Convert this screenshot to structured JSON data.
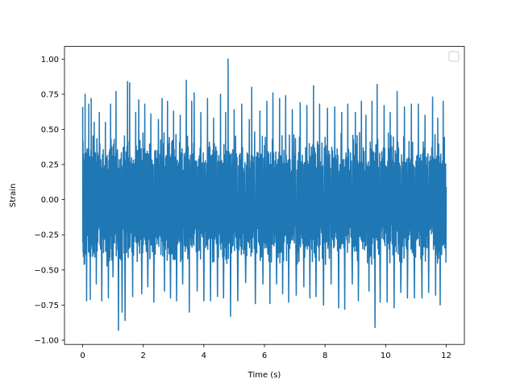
{
  "chart_data": {
    "type": "line",
    "title": "",
    "xlabel": "Time (s)",
    "ylabel": "Strain",
    "xlim": [
      -0.6,
      12.6
    ],
    "ylim": [
      -1.03,
      1.09
    ],
    "x_ticks": [
      {
        "value": 0,
        "label": "0"
      },
      {
        "value": 2,
        "label": "2"
      },
      {
        "value": 4,
        "label": "4"
      },
      {
        "value": 6,
        "label": "6"
      },
      {
        "value": 8,
        "label": "8"
      },
      {
        "value": 10,
        "label": "10"
      },
      {
        "value": 12,
        "label": "12"
      }
    ],
    "y_ticks": [
      {
        "value": -1.0,
        "label": "−1.00"
      },
      {
        "value": -0.75,
        "label": "−0.75"
      },
      {
        "value": -0.5,
        "label": "−0.50"
      },
      {
        "value": -0.25,
        "label": "−0.25"
      },
      {
        "value": 0.0,
        "label": "0.00"
      },
      {
        "value": 0.25,
        "label": "0.25"
      },
      {
        "value": 0.5,
        "label": "0.50"
      },
      {
        "value": 0.75,
        "label": "0.75"
      },
      {
        "value": 1.0,
        "label": "1.00"
      }
    ],
    "grid": false,
    "legend": {
      "placement": "top-right",
      "entries": []
    },
    "series": [
      {
        "color": "#1f77b4",
        "x_range": [
          0,
          12
        ],
        "typical_envelope": [
          -0.5,
          0.5
        ],
        "peaks": [
          {
            "x": 0.0,
            "y": 0.66
          },
          {
            "x": 0.05,
            "y": -0.46
          },
          {
            "x": 0.08,
            "y": 0.75
          },
          {
            "x": 0.13,
            "y": -0.72
          },
          {
            "x": 0.2,
            "y": 0.68
          },
          {
            "x": 0.25,
            "y": -0.71
          },
          {
            "x": 0.28,
            "y": 0.72
          },
          {
            "x": 0.38,
            "y": 0.55
          },
          {
            "x": 0.45,
            "y": -0.6
          },
          {
            "x": 0.55,
            "y": 0.62
          },
          {
            "x": 0.63,
            "y": -0.72
          },
          {
            "x": 0.75,
            "y": 0.55
          },
          {
            "x": 0.85,
            "y": -0.7
          },
          {
            "x": 0.92,
            "y": 0.68
          },
          {
            "x": 1.0,
            "y": -0.55
          },
          {
            "x": 1.1,
            "y": 0.77
          },
          {
            "x": 1.18,
            "y": -0.93
          },
          {
            "x": 1.3,
            "y": -0.8
          },
          {
            "x": 1.4,
            "y": -0.86
          },
          {
            "x": 1.48,
            "y": 0.84
          },
          {
            "x": 1.55,
            "y": 0.83
          },
          {
            "x": 1.65,
            "y": -0.69
          },
          {
            "x": 1.75,
            "y": 0.62
          },
          {
            "x": 1.85,
            "y": 0.71
          },
          {
            "x": 1.95,
            "y": -0.67
          },
          {
            "x": 2.05,
            "y": 0.68
          },
          {
            "x": 2.15,
            "y": -0.62
          },
          {
            "x": 2.25,
            "y": 0.61
          },
          {
            "x": 2.35,
            "y": -0.73
          },
          {
            "x": 2.5,
            "y": 0.57
          },
          {
            "x": 2.62,
            "y": 0.72
          },
          {
            "x": 2.7,
            "y": -0.65
          },
          {
            "x": 2.8,
            "y": 0.7
          },
          {
            "x": 2.9,
            "y": -0.7
          },
          {
            "x": 3.0,
            "y": 0.63
          },
          {
            "x": 3.1,
            "y": -0.72
          },
          {
            "x": 3.22,
            "y": 0.6
          },
          {
            "x": 3.3,
            "y": -0.6
          },
          {
            "x": 3.42,
            "y": 0.85
          },
          {
            "x": 3.52,
            "y": -0.8
          },
          {
            "x": 3.6,
            "y": 0.7
          },
          {
            "x": 3.68,
            "y": 0.76
          },
          {
            "x": 3.78,
            "y": -0.65
          },
          {
            "x": 3.9,
            "y": 0.62
          },
          {
            "x": 4.0,
            "y": -0.72
          },
          {
            "x": 4.12,
            "y": 0.72
          },
          {
            "x": 4.22,
            "y": -0.72
          },
          {
            "x": 4.32,
            "y": 0.58
          },
          {
            "x": 4.45,
            "y": -0.69
          },
          {
            "x": 4.55,
            "y": 0.75
          },
          {
            "x": 4.65,
            "y": -0.7
          },
          {
            "x": 4.72,
            "y": 0.62
          },
          {
            "x": 4.8,
            "y": 1.0
          },
          {
            "x": 4.88,
            "y": -0.83
          },
          {
            "x": 5.0,
            "y": 0.64
          },
          {
            "x": 5.12,
            "y": -0.72
          },
          {
            "x": 5.25,
            "y": 0.68
          },
          {
            "x": 5.38,
            "y": -0.59
          },
          {
            "x": 5.5,
            "y": 0.57
          },
          {
            "x": 5.58,
            "y": 0.8
          },
          {
            "x": 5.7,
            "y": -0.74
          },
          {
            "x": 5.85,
            "y": 0.63
          },
          {
            "x": 5.95,
            "y": -0.6
          },
          {
            "x": 6.08,
            "y": 0.7
          },
          {
            "x": 6.18,
            "y": -0.74
          },
          {
            "x": 6.28,
            "y": 0.76
          },
          {
            "x": 6.4,
            "y": -0.6
          },
          {
            "x": 6.5,
            "y": 0.72
          },
          {
            "x": 6.6,
            "y": -0.67
          },
          {
            "x": 6.7,
            "y": 0.74
          },
          {
            "x": 6.8,
            "y": -0.73
          },
          {
            "x": 6.92,
            "y": 0.64
          },
          {
            "x": 7.05,
            "y": -0.68
          },
          {
            "x": 7.18,
            "y": 0.69
          },
          {
            "x": 7.3,
            "y": -0.62
          },
          {
            "x": 7.4,
            "y": 0.67
          },
          {
            "x": 7.5,
            "y": -0.7
          },
          {
            "x": 7.62,
            "y": 0.81
          },
          {
            "x": 7.7,
            "y": -0.69
          },
          {
            "x": 7.82,
            "y": 0.68
          },
          {
            "x": 7.95,
            "y": -0.75
          },
          {
            "x": 8.08,
            "y": 0.65
          },
          {
            "x": 8.2,
            "y": -0.6
          },
          {
            "x": 8.32,
            "y": 0.66
          },
          {
            "x": 8.45,
            "y": -0.77
          },
          {
            "x": 8.55,
            "y": 0.62
          },
          {
            "x": 8.65,
            "y": -0.78
          },
          {
            "x": 8.75,
            "y": 0.68
          },
          {
            "x": 8.9,
            "y": -0.6
          },
          {
            "x": 9.0,
            "y": 0.62
          },
          {
            "x": 9.1,
            "y": -0.72
          },
          {
            "x": 9.2,
            "y": 0.7
          },
          {
            "x": 9.35,
            "y": 0.6
          },
          {
            "x": 9.45,
            "y": -0.65
          },
          {
            "x": 9.55,
            "y": 0.7
          },
          {
            "x": 9.65,
            "y": -0.91
          },
          {
            "x": 9.72,
            "y": 0.82
          },
          {
            "x": 9.82,
            "y": -0.73
          },
          {
            "x": 9.95,
            "y": 0.67
          },
          {
            "x": 10.05,
            "y": -0.73
          },
          {
            "x": 10.15,
            "y": 0.62
          },
          {
            "x": 10.28,
            "y": -0.77
          },
          {
            "x": 10.38,
            "y": 0.77
          },
          {
            "x": 10.5,
            "y": -0.66
          },
          {
            "x": 10.62,
            "y": 0.66
          },
          {
            "x": 10.72,
            "y": -0.7
          },
          {
            "x": 10.85,
            "y": 0.68
          },
          {
            "x": 10.95,
            "y": -0.7
          },
          {
            "x": 11.08,
            "y": 0.68
          },
          {
            "x": 11.2,
            "y": -0.7
          },
          {
            "x": 11.3,
            "y": 0.6
          },
          {
            "x": 11.42,
            "y": -0.66
          },
          {
            "x": 11.55,
            "y": 0.73
          },
          {
            "x": 11.65,
            "y": -0.68
          },
          {
            "x": 11.72,
            "y": 0.58
          },
          {
            "x": 11.8,
            "y": -0.75
          },
          {
            "x": 11.9,
            "y": 0.7
          },
          {
            "x": 12.0,
            "y": 0.09
          }
        ]
      }
    ]
  }
}
